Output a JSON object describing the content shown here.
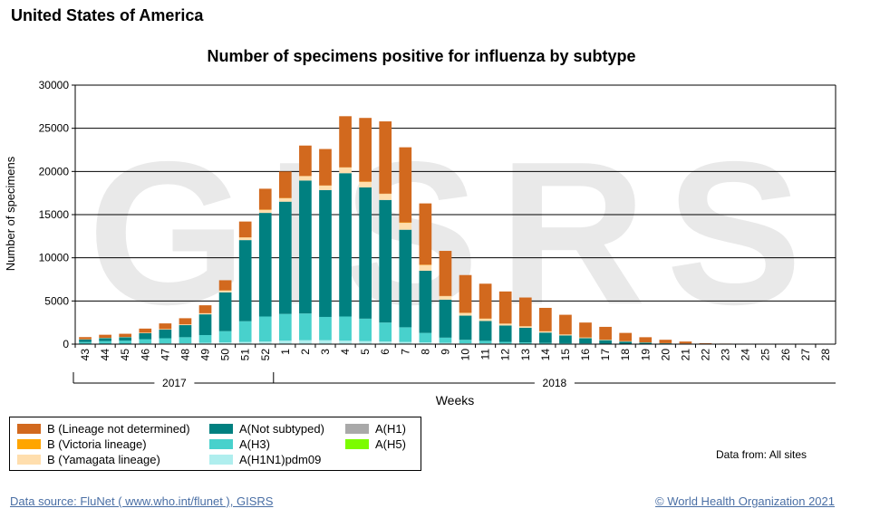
{
  "page": {
    "country": "United States of America",
    "data_from": "Data from: All sites",
    "source_link": "Data source: FluNet ( www.who.int/flunet ), GISRS",
    "copyright_link": "© World Health Organization 2021",
    "watermark": "GISRS"
  },
  "colors": {
    "b_lineage_not_determined": "#d2691e",
    "b_victoria": "#ffa500",
    "b_yamagata": "#ffdead",
    "a_not_subtyped": "#008080",
    "a_h3": "#48d1cc",
    "a_h1n1pdm09": "#afeeee",
    "a_h1": "#a9a9a9",
    "a_h5": "#7cfc00"
  },
  "chart_data": {
    "type": "bar",
    "stacked": true,
    "title": "Number of specimens positive for influenza by subtype",
    "xlabel": "Weeks",
    "ylabel": "Number of specimens",
    "ylim": [
      0,
      30000
    ],
    "yticks": [
      "0",
      "5000",
      "10000",
      "15000",
      "20000",
      "25000",
      "30000"
    ],
    "grid": true,
    "legend_position": "bottom-left",
    "categories": [
      "43",
      "44",
      "45",
      "46",
      "47",
      "48",
      "49",
      "50",
      "51",
      "52",
      "1",
      "2",
      "3",
      "4",
      "5",
      "6",
      "7",
      "8",
      "9",
      "10",
      "11",
      "12",
      "13",
      "14",
      "15",
      "16",
      "17",
      "18",
      "19",
      "20",
      "21",
      "22",
      "23",
      "24",
      "25",
      "26",
      "27",
      "28"
    ],
    "year_groups": [
      {
        "label": "2017",
        "from": "43",
        "to": "52"
      },
      {
        "label": "2018",
        "from": "1",
        "to": "28"
      }
    ],
    "series": [
      {
        "name": "A(H1N1)pdm09",
        "color_key": "a_h1n1pdm09",
        "values": [
          40,
          50,
          50,
          70,
          80,
          100,
          150,
          200,
          250,
          300,
          400,
          450,
          450,
          400,
          350,
          300,
          250,
          200,
          150,
          100,
          80,
          60,
          50,
          40,
          30,
          25,
          20,
          15,
          10,
          5,
          5,
          2,
          2,
          2,
          1,
          1,
          1,
          1
        ]
      },
      {
        "name": "A(H3)",
        "color_key": "a_h3",
        "values": [
          200,
          300,
          350,
          500,
          600,
          700,
          900,
          1300,
          2400,
          2900,
          3100,
          3100,
          2700,
          2800,
          2600,
          2200,
          1700,
          1100,
          600,
          400,
          300,
          200,
          150,
          100,
          80,
          60,
          40,
          30,
          20,
          10,
          5,
          3,
          2,
          2,
          1,
          1,
          1,
          1
        ]
      },
      {
        "name": "A(Not subtyped)",
        "color_key": "a_not_subtyped",
        "values": [
          300,
          350,
          400,
          700,
          1000,
          1400,
          2400,
          4500,
          9400,
          12000,
          13000,
          15400,
          14700,
          16600,
          15200,
          14200,
          11300,
          7200,
          4400,
          2800,
          2300,
          1900,
          1700,
          1200,
          900,
          600,
          400,
          250,
          150,
          80,
          50,
          30,
          20,
          15,
          10,
          8,
          8,
          5
        ]
      },
      {
        "name": "A(H1)",
        "color_key": "a_h1",
        "values": [
          0,
          0,
          0,
          0,
          0,
          0,
          0,
          0,
          0,
          0,
          0,
          0,
          0,
          0,
          0,
          0,
          0,
          0,
          0,
          0,
          0,
          0,
          0,
          0,
          0,
          0,
          0,
          0,
          0,
          0,
          0,
          0,
          0,
          0,
          0,
          0,
          0,
          0
        ]
      },
      {
        "name": "A(H5)",
        "color_key": "a_h5",
        "values": [
          0,
          0,
          0,
          0,
          0,
          0,
          0,
          0,
          0,
          0,
          0,
          0,
          0,
          0,
          0,
          0,
          0,
          0,
          0,
          0,
          0,
          0,
          0,
          0,
          0,
          0,
          0,
          0,
          0,
          0,
          0,
          0,
          0,
          0,
          0,
          0,
          0,
          0
        ]
      },
      {
        "name": "B (Yamagata lineage)",
        "color_key": "b_yamagata",
        "values": [
          20,
          30,
          30,
          50,
          60,
          80,
          120,
          200,
          300,
          350,
          400,
          500,
          500,
          650,
          650,
          700,
          800,
          650,
          400,
          300,
          250,
          200,
          150,
          130,
          100,
          80,
          50,
          40,
          25,
          15,
          10,
          5,
          3,
          3,
          2,
          2,
          2,
          2
        ]
      },
      {
        "name": "B (Victoria lineage)",
        "color_key": "b_victoria",
        "values": [
          5,
          5,
          5,
          5,
          5,
          10,
          10,
          20,
          20,
          30,
          30,
          30,
          30,
          30,
          30,
          30,
          50,
          50,
          30,
          30,
          30,
          20,
          20,
          20,
          10,
          10,
          10,
          5,
          5,
          5,
          2,
          1,
          1,
          1,
          1,
          1,
          1,
          1
        ]
      },
      {
        "name": "B (Lineage not determined)",
        "color_key": "b_lineage_not_determined",
        "values": [
          250,
          350,
          365,
          475,
          655,
          710,
          920,
          1180,
          1830,
          2420,
          3070,
          3520,
          4220,
          5920,
          7370,
          8370,
          8700,
          7100,
          5220,
          4370,
          4040,
          3720,
          3330,
          2710,
          2280,
          1725,
          1480,
          960,
          590,
          390,
          228,
          59,
          32,
          27,
          25,
          18,
          18,
          15
        ]
      }
    ]
  }
}
